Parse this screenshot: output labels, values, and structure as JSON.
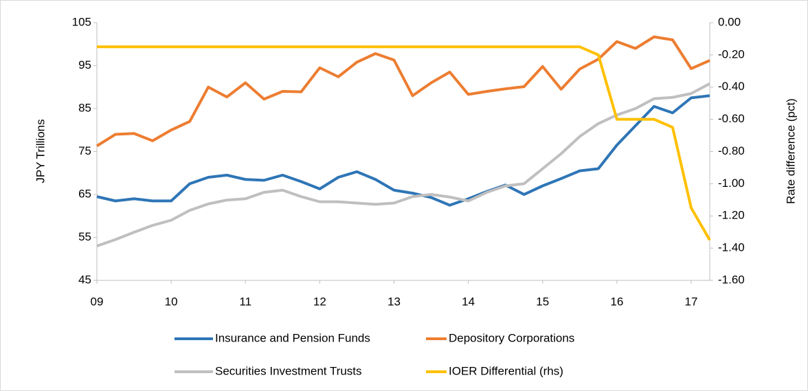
{
  "chart_data": {
    "type": "line",
    "y_label": "JPY Trillions",
    "y2_label": "Rate difference (pct)",
    "categories": [
      "09",
      null,
      null,
      null,
      "10",
      null,
      null,
      null,
      "11",
      null,
      null,
      null,
      "12",
      null,
      null,
      null,
      "13",
      null,
      null,
      null,
      "14",
      null,
      null,
      null,
      "15",
      null,
      null,
      null,
      "16",
      null,
      null,
      null,
      "17",
      null
    ],
    "ylim": [
      45,
      105
    ],
    "yticks": [
      45,
      55,
      65,
      75,
      85,
      95,
      105
    ],
    "y2lim": [
      -1.6,
      0
    ],
    "y2ticks": [
      {
        "value": -1.6,
        "label": "-1.60"
      },
      {
        "value": -1.4,
        "label": "-1.40"
      },
      {
        "value": -1.2,
        "label": "-1.20"
      },
      {
        "value": -1.0,
        "label": "-1.00"
      },
      {
        "value": -0.8,
        "label": "-0.80"
      },
      {
        "value": -0.6,
        "label": "-0.60"
      },
      {
        "value": -0.4,
        "label": "-0.40"
      },
      {
        "value": -0.2,
        "label": "-0.20"
      },
      {
        "value": 0,
        "label": "0.00"
      }
    ],
    "grid": false,
    "series": [
      {
        "name": "Insurance and Pension Funds",
        "color": "#2e75b6",
        "values": [
          64.5,
          63.5,
          64,
          63.5,
          63.5,
          67.5,
          69,
          69.5,
          68.5,
          68.3,
          69.5,
          68,
          66.3,
          69,
          70.3,
          68.5,
          66,
          65.3,
          64.3,
          62.5,
          64,
          65.7,
          67.2,
          65,
          67,
          68.7,
          70.5,
          71,
          76.5,
          81,
          85.5,
          84,
          87.5,
          88
        ]
      },
      {
        "name": "Depository Corporations",
        "color": "#ed7d31",
        "values": [
          76.3,
          79,
          79.2,
          77.5,
          80,
          82,
          90,
          87.7,
          91,
          87.2,
          89,
          88.9,
          94.5,
          92.4,
          95.8,
          97.8,
          96.3,
          88,
          91,
          93.5,
          88.3,
          89,
          89.6,
          90.1,
          94.8,
          89.5,
          94.2,
          96.5,
          100.6,
          99,
          101.7,
          101,
          94.3,
          96.2
        ]
      },
      {
        "name": "Securities Investment Trusts",
        "color": "#bfbfbf",
        "values": [
          53,
          54.5,
          56.2,
          57.8,
          59,
          61.3,
          62.8,
          63.7,
          64,
          65.5,
          66,
          64.5,
          63.3,
          63.3,
          63,
          62.7,
          63,
          64.5,
          65,
          64.4,
          63.5,
          65.5,
          67,
          67.5,
          71,
          74.5,
          78.5,
          81.5,
          83.5,
          85,
          87.3,
          87.6,
          88.5,
          90.8
        ]
      },
      {
        "name": "IOER Differential (rhs)",
        "color": "#ffc000",
        "axis": "y2",
        "values": [
          -0.15,
          -0.15,
          -0.15,
          -0.15,
          -0.15,
          -0.15,
          -0.15,
          -0.15,
          -0.15,
          -0.15,
          -0.15,
          -0.15,
          -0.15,
          -0.15,
          -0.15,
          -0.15,
          -0.15,
          -0.15,
          -0.15,
          -0.15,
          -0.15,
          -0.15,
          -0.15,
          -0.15,
          -0.15,
          -0.15,
          -0.15,
          -0.2,
          -0.6,
          -0.6,
          -0.6,
          -0.65,
          -1.15,
          -1.35
        ]
      }
    ]
  }
}
